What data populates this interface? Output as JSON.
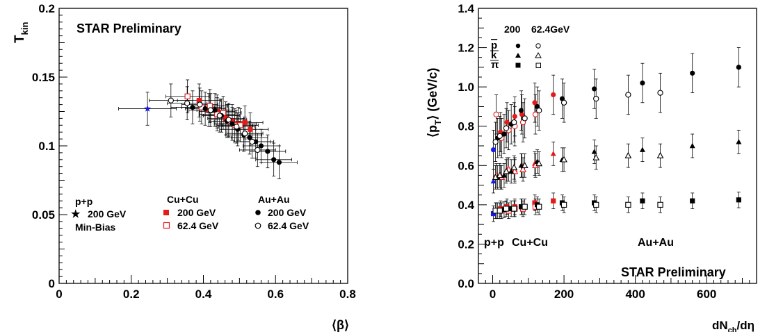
{
  "colors": {
    "pp": "#1a1ae6",
    "cucu": "#e61a1a",
    "auau": "#000000"
  },
  "chart_data": [
    {
      "type": "scatter",
      "xlabel": "⟨β⟩",
      "ylabel": "T",
      "ylabel_sub": "kin",
      "xlim": [
        0,
        0.8
      ],
      "ylim": [
        0,
        0.2
      ],
      "xticks": [
        "0",
        "0.2",
        "0.4",
        "0.6",
        "0.8"
      ],
      "yticks": [
        "0",
        "0.05",
        "0.1",
        "0.15",
        "0.2"
      ],
      "annotation": "STAR Preliminary",
      "legend": {
        "pp": {
          "title": "p+p",
          "entry": "200 GeV",
          "note": "Min-Bias"
        },
        "cucu": {
          "title": "Cu+Cu",
          "entries": [
            "200 GeV",
            "62.4 GeV"
          ]
        },
        "auau": {
          "title": "Au+Au",
          "entries": [
            "200 GeV",
            "62.4 GeV"
          ]
        }
      },
      "series": [
        {
          "system": "pp",
          "energy": "200",
          "marker": "star",
          "x": [
            0.245
          ],
          "y": [
            0.127
          ],
          "xerr": [
            0.08
          ],
          "yerr": [
            0.012
          ]
        },
        {
          "system": "cucu",
          "energy": "200",
          "marker": "square-filled",
          "x": [
            0.388,
            0.415,
            0.438,
            0.462,
            0.48,
            0.497,
            0.515,
            0.53
          ],
          "y": [
            0.133,
            0.126,
            0.125,
            0.12,
            0.118,
            0.116,
            0.117,
            0.112
          ],
          "xerr": [
            0.06,
            0.055,
            0.05,
            0.05,
            0.05,
            0.05,
            0.05,
            0.05
          ],
          "yerr": [
            0.012,
            0.012,
            0.012,
            0.012,
            0.012,
            0.012,
            0.012,
            0.012
          ]
        },
        {
          "system": "cucu",
          "energy": "62.4",
          "marker": "square-open",
          "x": [
            0.356,
            0.395,
            0.418,
            0.438,
            0.455,
            0.47,
            0.487,
            0.502
          ],
          "y": [
            0.136,
            0.128,
            0.129,
            0.123,
            0.124,
            0.118,
            0.115,
            0.115
          ],
          "xerr": [
            0.06,
            0.055,
            0.05,
            0.05,
            0.05,
            0.05,
            0.05,
            0.05
          ],
          "yerr": [
            0.012,
            0.012,
            0.012,
            0.012,
            0.012,
            0.012,
            0.012,
            0.012
          ]
        },
        {
          "system": "auau",
          "energy": "200",
          "marker": "circle-filled",
          "x": [
            0.37,
            0.405,
            0.432,
            0.45,
            0.465,
            0.48,
            0.495,
            0.512,
            0.528,
            0.545,
            0.56,
            0.578,
            0.595,
            0.61
          ],
          "y": [
            0.128,
            0.127,
            0.126,
            0.122,
            0.118,
            0.116,
            0.112,
            0.108,
            0.106,
            0.103,
            0.1,
            0.096,
            0.09,
            0.088
          ],
          "xerr": [
            0.06,
            0.055,
            0.05,
            0.05,
            0.05,
            0.05,
            0.05,
            0.05,
            0.05,
            0.05,
            0.05,
            0.05,
            0.05,
            0.05
          ],
          "yerr": [
            0.012,
            0.012,
            0.012,
            0.012,
            0.012,
            0.012,
            0.012,
            0.012,
            0.012,
            0.012,
            0.012,
            0.012,
            0.012,
            0.012
          ]
        },
        {
          "system": "auau",
          "energy": "62.4",
          "marker": "circle-open",
          "x": [
            0.31,
            0.355,
            0.39,
            0.42,
            0.445,
            0.47,
            0.492,
            0.515,
            0.535,
            0.55
          ],
          "y": [
            0.133,
            0.131,
            0.13,
            0.126,
            0.122,
            0.119,
            0.114,
            0.109,
            0.103,
            0.097
          ],
          "xerr": [
            0.06,
            0.055,
            0.05,
            0.05,
            0.05,
            0.05,
            0.05,
            0.05,
            0.05,
            0.05
          ],
          "yerr": [
            0.012,
            0.012,
            0.012,
            0.012,
            0.012,
            0.012,
            0.012,
            0.012,
            0.012,
            0.012
          ]
        }
      ]
    },
    {
      "type": "scatter",
      "xlabel": "dN",
      "xlabel_sub": "ch",
      "xlabel_tail": "/dη",
      "ylabel": "⟨p",
      "ylabel_sub": "T",
      "ylabel_tail": "⟩ (GeV/c)",
      "xlim": [
        -40,
        740
      ],
      "ylim": [
        0,
        1.4
      ],
      "xticks": [
        0,
        200,
        400,
        600
      ],
      "yticks": [
        "0.0",
        "0.2",
        "0.4",
        "0.6",
        "0.8",
        "1.0",
        "1.2",
        "1.4"
      ],
      "annotation": "STAR Preliminary",
      "legend": {
        "columns": [
          "200",
          "62.4GeV"
        ],
        "rows": [
          "p",
          "k",
          "π"
        ],
        "system_labels": {
          "pp": "p+p",
          "cucu": "Cu+Cu",
          "auau": "Au+Au"
        }
      },
      "yerr": {
        "p": 0.1,
        "k": 0.06,
        "pi": 0.04
      },
      "series": [
        {
          "system": "pp",
          "particle": "p",
          "marker": "circle-filled",
          "x": [
            2
          ],
          "y": [
            0.68
          ]
        },
        {
          "system": "pp",
          "particle": "k",
          "marker": "triangle-filled",
          "x": [
            2
          ],
          "y": [
            0.52
          ]
        },
        {
          "system": "pp",
          "particle": "pi",
          "marker": "square-filled",
          "x": [
            2
          ],
          "y": [
            0.355
          ]
        },
        {
          "system": "cucu",
          "energy": "200",
          "particle": "p",
          "marker": "circle-filled",
          "x": [
            22,
            40,
            62,
            82,
            118,
            170
          ],
          "y": [
            0.77,
            0.82,
            0.85,
            0.86,
            0.92,
            0.96
          ]
        },
        {
          "system": "cucu",
          "energy": "200",
          "particle": "k",
          "marker": "triangle-filled",
          "x": [
            22,
            40,
            62,
            82,
            118,
            170
          ],
          "y": [
            0.54,
            0.58,
            0.58,
            0.6,
            0.61,
            0.66
          ]
        },
        {
          "system": "cucu",
          "energy": "200",
          "particle": "pi",
          "marker": "square-filled",
          "x": [
            22,
            40,
            62,
            82,
            118,
            170
          ],
          "y": [
            0.38,
            0.39,
            0.39,
            0.39,
            0.41,
            0.42
          ]
        },
        {
          "system": "cucu",
          "energy": "62.4",
          "particle": "p",
          "marker": "circle-open",
          "x": [
            10,
            25,
            45,
            62,
            85,
            120
          ],
          "y": [
            0.86,
            0.74,
            0.78,
            0.8,
            0.82,
            0.86
          ]
        },
        {
          "system": "cucu",
          "energy": "62.4",
          "particle": "k",
          "marker": "triangle-open",
          "x": [
            10,
            25,
            45,
            62,
            85,
            120
          ],
          "y": [
            0.55,
            0.54,
            0.58,
            0.57,
            0.58,
            0.6
          ]
        },
        {
          "system": "cucu",
          "energy": "62.4",
          "particle": "pi",
          "marker": "square-open",
          "x": [
            10,
            25,
            45,
            62,
            85,
            120
          ],
          "y": [
            0.37,
            0.37,
            0.37,
            0.38,
            0.38,
            0.39
          ]
        },
        {
          "system": "auau",
          "energy": "200",
          "particle": "p",
          "marker": "circle-filled",
          "x": [
            14,
            32,
            52,
            80,
            125,
            195,
            285,
            420,
            560,
            690
          ],
          "y": [
            0.74,
            0.76,
            0.81,
            0.88,
            0.9,
            0.94,
            0.99,
            1.02,
            1.07,
            1.1
          ]
        },
        {
          "system": "auau",
          "energy": "200",
          "particle": "k",
          "marker": "triangle-filled",
          "x": [
            14,
            32,
            52,
            80,
            125,
            195,
            285,
            420,
            560,
            690
          ],
          "y": [
            0.54,
            0.55,
            0.57,
            0.6,
            0.62,
            0.63,
            0.67,
            0.68,
            0.7,
            0.72
          ]
        },
        {
          "system": "auau",
          "energy": "200",
          "particle": "pi",
          "marker": "square-filled",
          "x": [
            14,
            32,
            52,
            80,
            125,
            195,
            285,
            420,
            560,
            690
          ],
          "y": [
            0.37,
            0.375,
            0.38,
            0.39,
            0.4,
            0.41,
            0.41,
            0.42,
            0.42,
            0.425
          ]
        },
        {
          "system": "auau",
          "energy": "62.4",
          "particle": "p",
          "marker": "circle-open",
          "x": [
            8,
            20,
            38,
            60,
            90,
            130,
            200,
            290,
            380,
            470
          ],
          "y": [
            0.72,
            0.75,
            0.79,
            0.82,
            0.84,
            0.88,
            0.92,
            0.94,
            0.96,
            0.97
          ]
        },
        {
          "system": "auau",
          "energy": "62.4",
          "particle": "k",
          "marker": "triangle-open",
          "x": [
            8,
            20,
            38,
            60,
            90,
            130,
            200,
            290,
            380,
            470
          ],
          "y": [
            0.54,
            0.55,
            0.57,
            0.59,
            0.6,
            0.61,
            0.63,
            0.64,
            0.65,
            0.65
          ]
        },
        {
          "system": "auau",
          "energy": "62.4",
          "particle": "pi",
          "marker": "square-open",
          "x": [
            8,
            20,
            38,
            60,
            90,
            130,
            200,
            290,
            380,
            470
          ],
          "y": [
            0.37,
            0.37,
            0.38,
            0.38,
            0.39,
            0.39,
            0.4,
            0.4,
            0.4,
            0.4
          ]
        }
      ]
    }
  ]
}
